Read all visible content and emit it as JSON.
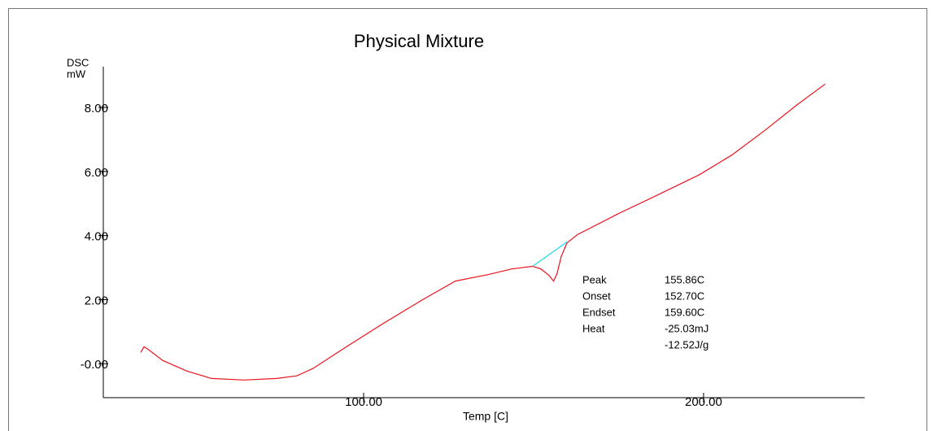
{
  "chart_data": {
    "type": "line",
    "title": "Physical Mixture",
    "y_label": [
      "DSC",
      "mW"
    ],
    "x_label": "Temp  [C]",
    "xlim": [
      23.4,
      247.4
    ],
    "ylim": [
      -1.06,
      9.27
    ],
    "xticks": [
      {
        "value": 100,
        "label": "100.00"
      },
      {
        "value": 200,
        "label": "200.00"
      }
    ],
    "yticks": [
      {
        "value": 0,
        "label": "-0.00"
      },
      {
        "value": 2,
        "label": "2.00"
      },
      {
        "value": 4,
        "label": "4.00"
      },
      {
        "value": 6,
        "label": "6.00"
      },
      {
        "value": 8,
        "label": "8.00"
      }
    ],
    "series": [
      {
        "color": "#e8141e",
        "x": [
          34.4,
          35.4,
          36.8,
          40.9,
          48.0,
          55.2,
          64.8,
          74.4,
          80.3,
          85.1,
          93.5,
          105.5,
          117.4,
          127.0,
          136.6,
          143.7,
          149.7,
          152.1,
          154.5,
          155.86,
          156.9,
          158.1,
          159.8,
          162.9,
          174.9,
          184.4,
          198.8,
          208.3,
          217.9,
          227.5,
          235.8
        ],
        "values": [
          0.35,
          0.53,
          0.43,
          0.1,
          -0.23,
          -0.46,
          -0.51,
          -0.46,
          -0.38,
          -0.15,
          0.43,
          1.24,
          2.0,
          2.58,
          2.78,
          2.96,
          3.04,
          2.96,
          2.76,
          2.58,
          2.81,
          3.34,
          3.77,
          4.03,
          4.68,
          5.16,
          5.9,
          6.51,
          7.27,
          8.08,
          8.73
        ]
      },
      {
        "color": "#22d8e8",
        "x": [
          149.7,
          159.8
        ],
        "values": [
          3.04,
          3.8
        ]
      }
    ],
    "annotations": [
      {
        "label": "Peak",
        "value": "155.86C"
      },
      {
        "label": "Onset",
        "value": "152.70C"
      },
      {
        "label": "Endset",
        "value": "159.60C"
      },
      {
        "label": "Heat",
        "value": "-25.03mJ"
      }
    ],
    "annotation_extra": "-12.52J/g"
  }
}
